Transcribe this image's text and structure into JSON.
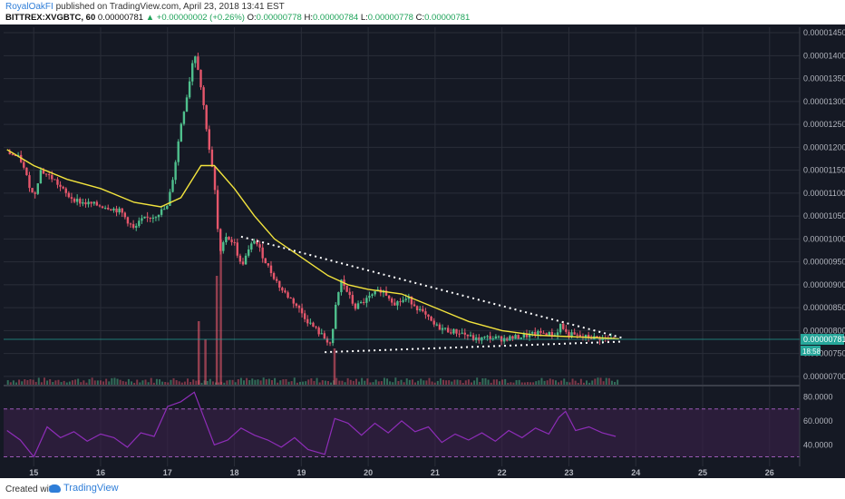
{
  "header": {
    "author": "RoyalOakFI",
    "published_text": "published on TradingView.com, April 23, 2018 13:41 EST",
    "symbol": "BITTREX:XVGBTC, 60",
    "last": "0.00000781",
    "change": "▲ +0.00000002 (+0.26%)",
    "open_label": "O:",
    "open": "0.00000778",
    "high_label": "H:",
    "high": "0.00000784",
    "low_label": "L:",
    "low": "0.00000778",
    "close_label": "C:",
    "close": "0.00000781"
  },
  "footer": {
    "created_with": "Created with",
    "brand": "TradingView"
  },
  "colors": {
    "background": "#151924",
    "grid": "#2a2e39",
    "up": "#4fc08d",
    "down": "#e5566b",
    "ma": "#f2e33d",
    "rsi": "#8e2db8",
    "rsi_band": "#3a1f4a",
    "price_tag": "#26a69a"
  },
  "chart_data": [
    {
      "type": "candlestick",
      "title": "",
      "x_ticks": [
        "15",
        "16",
        "17",
        "18",
        "19",
        "20",
        "21",
        "22",
        "23",
        "24",
        "25",
        "26"
      ],
      "y_ticks": [
        "0.00001450",
        "0.00001400",
        "0.00001350",
        "0.00001300",
        "0.00001250",
        "0.00001200",
        "0.00001150",
        "0.00001100",
        "0.00001050",
        "0.00001000",
        "0.00000950",
        "0.00000900",
        "0.00000850",
        "0.00000800",
        "0.00000750",
        "0.00000700"
      ],
      "ylim": [
        6.82e-06,
        1.462e-05
      ],
      "xlim": [
        14.55,
        26.45
      ],
      "last_price_label": "0.00000781",
      "countdown_label": "18:58",
      "close_path": [
        [
          14.6,
          1190
        ],
        [
          14.8,
          1175
        ],
        [
          15.0,
          1090
        ],
        [
          15.1,
          1150
        ],
        [
          15.3,
          1130
        ],
        [
          15.5,
          1095
        ],
        [
          15.7,
          1080
        ],
        [
          15.9,
          1075
        ],
        [
          16.1,
          1070
        ],
        [
          16.3,
          1060
        ],
        [
          16.5,
          1020
        ],
        [
          16.6,
          1040
        ],
        [
          16.8,
          1050
        ],
        [
          17.0,
          1070
        ],
        [
          17.1,
          1150
        ],
        [
          17.2,
          1250
        ],
        [
          17.3,
          1320
        ],
        [
          17.4,
          1410
        ],
        [
          17.45,
          1380
        ],
        [
          17.55,
          1280
        ],
        [
          17.62,
          1200
        ],
        [
          17.7,
          1120
        ],
        [
          17.78,
          960
        ],
        [
          17.85,
          1010
        ],
        [
          18.0,
          990
        ],
        [
          18.1,
          940
        ],
        [
          18.3,
          1000
        ],
        [
          18.5,
          940
        ],
        [
          18.7,
          890
        ],
        [
          18.9,
          860
        ],
        [
          19.1,
          820
        ],
        [
          19.3,
          790
        ],
        [
          19.45,
          770
        ],
        [
          19.52,
          860
        ],
        [
          19.6,
          910
        ],
        [
          19.8,
          850
        ],
        [
          20.0,
          870
        ],
        [
          20.2,
          890
        ],
        [
          20.4,
          860
        ],
        [
          20.6,
          870
        ],
        [
          20.8,
          840
        ],
        [
          21.0,
          810
        ],
        [
          21.2,
          800
        ],
        [
          21.4,
          795
        ],
        [
          21.6,
          780
        ],
        [
          21.8,
          785
        ],
        [
          22.0,
          782
        ],
        [
          22.2,
          785
        ],
        [
          22.4,
          790
        ],
        [
          22.6,
          795
        ],
        [
          22.8,
          790
        ],
        [
          22.88,
          815
        ],
        [
          22.95,
          795
        ],
        [
          23.1,
          788
        ],
        [
          23.3,
          785
        ],
        [
          23.5,
          783
        ],
        [
          23.7,
          781
        ]
      ],
      "ma_path": [
        [
          14.6,
          1195
        ],
        [
          15.0,
          1160
        ],
        [
          15.5,
          1130
        ],
        [
          16.0,
          1110
        ],
        [
          16.5,
          1080
        ],
        [
          16.9,
          1070
        ],
        [
          17.2,
          1090
        ],
        [
          17.5,
          1160
        ],
        [
          17.7,
          1160
        ],
        [
          18.0,
          1110
        ],
        [
          18.3,
          1050
        ],
        [
          18.6,
          1000
        ],
        [
          19.0,
          960
        ],
        [
          19.4,
          920
        ],
        [
          19.7,
          900
        ],
        [
          20.0,
          890
        ],
        [
          20.5,
          880
        ],
        [
          21.0,
          850
        ],
        [
          21.5,
          820
        ],
        [
          22.0,
          800
        ],
        [
          22.5,
          790
        ],
        [
          23.0,
          787
        ],
        [
          23.5,
          784
        ],
        [
          23.75,
          782
        ]
      ],
      "trendline_upper": [
        [
          18.1,
          1005
        ],
        [
          23.8,
          784
        ]
      ],
      "trendline_lower": [
        [
          19.35,
          753
        ],
        [
          23.8,
          776
        ]
      ],
      "volume_spikes": [
        17.45,
        17.55,
        17.72,
        17.78,
        19.48
      ]
    },
    {
      "type": "line",
      "title": "",
      "y_ticks": [
        "80.0000",
        "60.0000",
        "40.0000"
      ],
      "ylim": [
        22,
        88
      ],
      "band": [
        30,
        70
      ],
      "values": [
        [
          14.6,
          52
        ],
        [
          14.8,
          44
        ],
        [
          15.0,
          30
        ],
        [
          15.2,
          55
        ],
        [
          15.4,
          46
        ],
        [
          15.6,
          51
        ],
        [
          15.8,
          43
        ],
        [
          16.0,
          49
        ],
        [
          16.2,
          46
        ],
        [
          16.4,
          38
        ],
        [
          16.6,
          50
        ],
        [
          16.8,
          47
        ],
        [
          17.0,
          72
        ],
        [
          17.2,
          76
        ],
        [
          17.4,
          84
        ],
        [
          17.55,
          62
        ],
        [
          17.7,
          40
        ],
        [
          17.9,
          44
        ],
        [
          18.1,
          54
        ],
        [
          18.3,
          48
        ],
        [
          18.5,
          44
        ],
        [
          18.7,
          38
        ],
        [
          18.9,
          46
        ],
        [
          19.1,
          36
        ],
        [
          19.35,
          32
        ],
        [
          19.5,
          62
        ],
        [
          19.7,
          58
        ],
        [
          19.9,
          48
        ],
        [
          20.1,
          58
        ],
        [
          20.3,
          50
        ],
        [
          20.5,
          60
        ],
        [
          20.7,
          51
        ],
        [
          20.9,
          55
        ],
        [
          21.1,
          42
        ],
        [
          21.3,
          49
        ],
        [
          21.5,
          44
        ],
        [
          21.7,
          50
        ],
        [
          21.9,
          43
        ],
        [
          22.1,
          52
        ],
        [
          22.3,
          46
        ],
        [
          22.5,
          54
        ],
        [
          22.7,
          49
        ],
        [
          22.85,
          63
        ],
        [
          22.95,
          68
        ],
        [
          23.1,
          52
        ],
        [
          23.3,
          55
        ],
        [
          23.5,
          50
        ],
        [
          23.7,
          47
        ]
      ]
    }
  ]
}
